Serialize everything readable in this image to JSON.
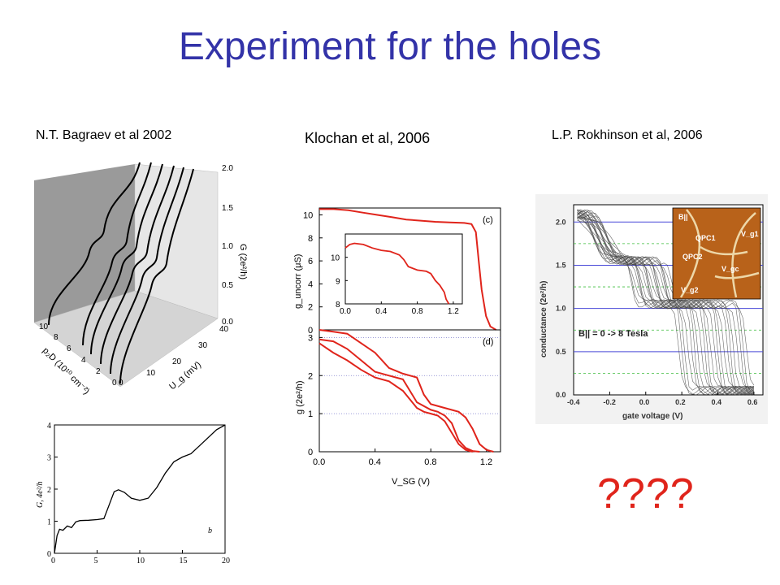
{
  "slide": {
    "title": "Experiment for the holes",
    "captions": {
      "left": "N.T. Bagraev et al 2002",
      "middle": "Klochan et al, 2006",
      "right": "L.P. Rokhinson et al, 2006"
    },
    "question": "????"
  },
  "chart_data": [
    {
      "id": "bagraev-3d",
      "type": "line",
      "zlabel": "G (2e²/h)",
      "zticks": [
        "0.0",
        "0.5",
        "1.0",
        "1.5",
        "2.0"
      ],
      "xlabel": "p₂D (10¹⁰ cm⁻²)",
      "xticks": [
        "10",
        "8",
        "6",
        "4",
        "2",
        "0"
      ],
      "ylabel": "U_g (mV)",
      "yticks": [
        "0",
        "10",
        "20",
        "30",
        "40"
      ]
    },
    {
      "id": "bagraev-2d",
      "type": "line",
      "ylabel": "G, 4e²/h",
      "panel_label": "b",
      "xlim": [
        0,
        20
      ],
      "ylim": [
        0,
        4
      ],
      "xticks": [
        "0",
        "5",
        "10",
        "15",
        "20"
      ],
      "yticks": [
        "0",
        "1",
        "2",
        "3",
        "4"
      ],
      "x": [
        0,
        0.3,
        0.6,
        1.0,
        1.5,
        2.0,
        2.5,
        3.0,
        4.0,
        5.0,
        5.8,
        6.4,
        7.0,
        7.5,
        8.2,
        9.0,
        10.0,
        11.0,
        12.0,
        13.0,
        14.0,
        15.0,
        16.0,
        17.0,
        18.0,
        19.0,
        20.0
      ],
      "y": [
        0,
        0.55,
        0.75,
        0.72,
        0.85,
        0.8,
        0.98,
        1.02,
        1.03,
        1.05,
        1.08,
        1.5,
        1.92,
        1.98,
        1.9,
        1.72,
        1.65,
        1.72,
        2.05,
        2.5,
        2.85,
        3.0,
        3.1,
        3.35,
        3.6,
        3.85,
        4.0
      ]
    },
    {
      "id": "klochan-c",
      "type": "line",
      "panel_label": "(c)",
      "ylabel": "g_uncorr (μS)",
      "ylim": [
        0,
        10.6
      ],
      "yticks": [
        "0",
        "2",
        "4",
        "6",
        "8",
        "10"
      ],
      "xlim": [
        0,
        1.25
      ],
      "series": [
        {
          "x": [
            0.0,
            0.1,
            0.2,
            0.3,
            0.4,
            0.5,
            0.6,
            0.7,
            0.8,
            0.9,
            1.0,
            1.05,
            1.08,
            1.1,
            1.12,
            1.15,
            1.18,
            1.22
          ],
          "y": [
            10.5,
            10.5,
            10.4,
            10.2,
            10.0,
            9.8,
            9.6,
            9.5,
            9.4,
            9.35,
            9.3,
            9.2,
            8.5,
            6.0,
            3.5,
            1.2,
            0.3,
            0.0
          ]
        }
      ],
      "inset": {
        "xlim": [
          0,
          1.3
        ],
        "ylim": [
          8,
          11
        ],
        "xticks": [
          "0.0",
          "0.4",
          "0.8",
          "1.2"
        ],
        "yticks": [
          "8",
          "9",
          "10"
        ],
        "x": [
          0.0,
          0.05,
          0.1,
          0.2,
          0.3,
          0.4,
          0.5,
          0.6,
          0.65,
          0.7,
          0.8,
          0.9,
          0.95,
          1.0,
          1.05,
          1.1,
          1.12,
          1.15
        ],
        "y": [
          10.4,
          10.55,
          10.6,
          10.55,
          10.4,
          10.3,
          10.25,
          10.1,
          9.9,
          9.6,
          9.45,
          9.4,
          9.3,
          9.0,
          8.8,
          8.5,
          8.2,
          8.0
        ]
      }
    },
    {
      "id": "klochan-d",
      "type": "line",
      "panel_label": "(d)",
      "ylabel": "g (2e²/h)",
      "xlabel": "V_SG (V)",
      "xlim": [
        0,
        1.3
      ],
      "ylim": [
        0,
        3.2
      ],
      "xticks": [
        "0.0",
        "0.4",
        "0.8",
        "1.2"
      ],
      "yticks": [
        "0",
        "1",
        "2",
        "3"
      ],
      "series": [
        {
          "x": [
            0.0,
            0.1,
            0.2,
            0.3,
            0.4,
            0.5,
            0.6,
            0.7,
            0.75,
            0.8,
            0.85,
            0.9,
            0.95,
            1.0,
            1.05,
            1.1
          ],
          "y": [
            2.85,
            2.6,
            2.4,
            2.15,
            1.95,
            1.85,
            1.6,
            1.15,
            1.05,
            1.0,
            0.95,
            0.8,
            0.5,
            0.2,
            0.05,
            0.0
          ]
        },
        {
          "x": [
            0.0,
            0.1,
            0.2,
            0.3,
            0.4,
            0.5,
            0.6,
            0.7,
            0.8,
            0.85,
            0.9,
            0.95,
            1.0,
            1.05,
            1.1,
            1.15
          ],
          "y": [
            2.95,
            2.9,
            2.7,
            2.4,
            2.1,
            2.0,
            1.9,
            1.3,
            1.1,
            1.05,
            0.95,
            0.75,
            0.3,
            0.1,
            0.02,
            0.0
          ]
        },
        {
          "x": [
            0.0,
            0.1,
            0.2,
            0.3,
            0.4,
            0.5,
            0.6,
            0.7,
            0.75,
            0.8,
            0.9,
            1.0,
            1.05,
            1.1,
            1.15,
            1.2,
            1.25
          ],
          "y": [
            3.2,
            3.15,
            3.1,
            2.85,
            2.6,
            2.2,
            2.05,
            1.95,
            1.5,
            1.25,
            1.15,
            1.05,
            0.9,
            0.6,
            0.2,
            0.05,
            0.0
          ]
        }
      ]
    },
    {
      "id": "rokhinson",
      "type": "line",
      "xlabel": "gate voltage (V)",
      "ylabel": "conductance (2e²/h)",
      "xlim": [
        -0.4,
        0.65
      ],
      "ylim": [
        0,
        2.2
      ],
      "xticks": [
        "-0.4",
        "-0.2",
        "0.0",
        "0.2",
        "0.4",
        "0.6"
      ],
      "yticks": [
        "0.0",
        "0.5",
        "1.0",
        "1.5",
        "2.0"
      ],
      "annotation": "B|| = 0 -> 8 Tesla",
      "inset_labels": [
        "B||",
        "QPC1",
        "V_g1",
        "QPC2",
        "V_gc",
        "V_g2"
      ]
    }
  ]
}
